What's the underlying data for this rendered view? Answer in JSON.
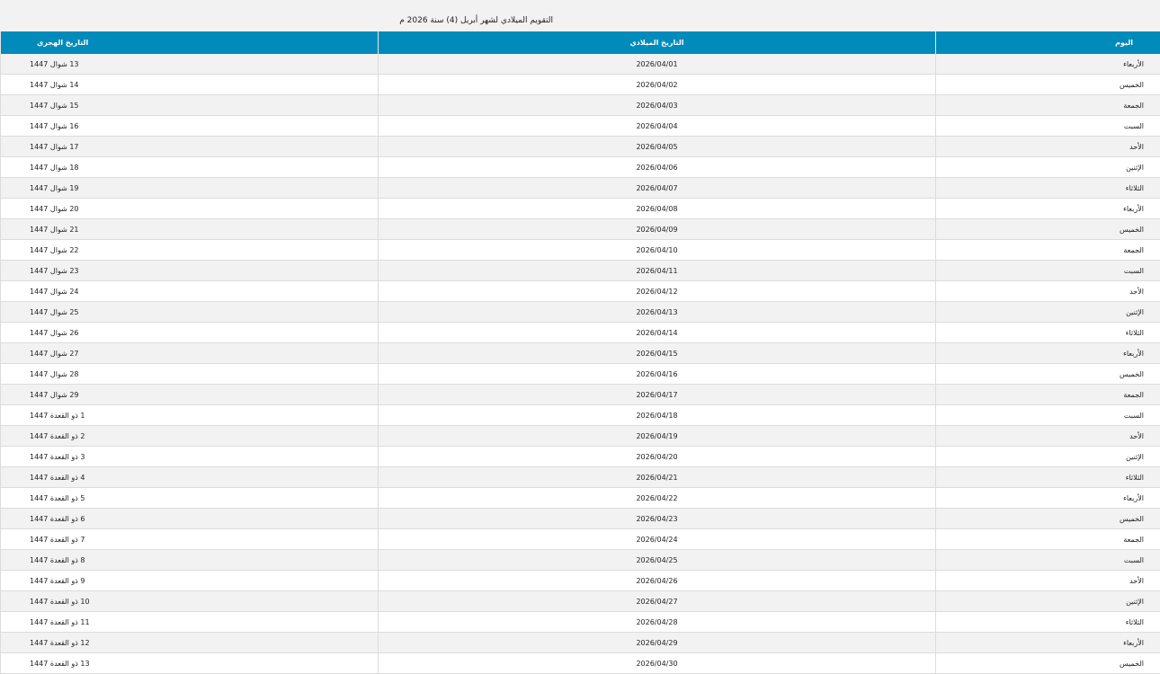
{
  "title": "التقويم الميلادي لشهر أبريل (4) سنة 2026 م",
  "accent": "#008bbb",
  "headers": {
    "day": "اليوم",
    "gregorian": "التاريخ الميلادي",
    "hijri": "التاريخ الهجري"
  },
  "rows": [
    {
      "day": "الأربعاء",
      "gregorian": "2026/04/01",
      "hijri": "13 شوال 1447"
    },
    {
      "day": "الخميس",
      "gregorian": "2026/04/02",
      "hijri": "14 شوال 1447"
    },
    {
      "day": "الجمعة",
      "gregorian": "2026/04/03",
      "hijri": "15 شوال 1447"
    },
    {
      "day": "السبت",
      "gregorian": "2026/04/04",
      "hijri": "16 شوال 1447"
    },
    {
      "day": "الأحد",
      "gregorian": "2026/04/05",
      "hijri": "17 شوال 1447"
    },
    {
      "day": "الإثنين",
      "gregorian": "2026/04/06",
      "hijri": "18 شوال 1447"
    },
    {
      "day": "الثلاثاء",
      "gregorian": "2026/04/07",
      "hijri": "19 شوال 1447"
    },
    {
      "day": "الأربعاء",
      "gregorian": "2026/04/08",
      "hijri": "20 شوال 1447"
    },
    {
      "day": "الخميس",
      "gregorian": "2026/04/09",
      "hijri": "21 شوال 1447"
    },
    {
      "day": "الجمعة",
      "gregorian": "2026/04/10",
      "hijri": "22 شوال 1447"
    },
    {
      "day": "السبت",
      "gregorian": "2026/04/11",
      "hijri": "23 شوال 1447"
    },
    {
      "day": "الأحد",
      "gregorian": "2026/04/12",
      "hijri": "24 شوال 1447"
    },
    {
      "day": "الإثنين",
      "gregorian": "2026/04/13",
      "hijri": "25 شوال 1447"
    },
    {
      "day": "الثلاثاء",
      "gregorian": "2026/04/14",
      "hijri": "26 شوال 1447"
    },
    {
      "day": "الأربعاء",
      "gregorian": "2026/04/15",
      "hijri": "27 شوال 1447"
    },
    {
      "day": "الخميس",
      "gregorian": "2026/04/16",
      "hijri": "28 شوال 1447"
    },
    {
      "day": "الجمعة",
      "gregorian": "2026/04/17",
      "hijri": "29 شوال 1447"
    },
    {
      "day": "السبت",
      "gregorian": "2026/04/18",
      "hijri": "1 ذو القعدة 1447"
    },
    {
      "day": "الأحد",
      "gregorian": "2026/04/19",
      "hijri": "2 ذو القعدة 1447"
    },
    {
      "day": "الإثنين",
      "gregorian": "2026/04/20",
      "hijri": "3 ذو القعدة 1447"
    },
    {
      "day": "الثلاثاء",
      "gregorian": "2026/04/21",
      "hijri": "4 ذو القعدة 1447"
    },
    {
      "day": "الأربعاء",
      "gregorian": "2026/04/22",
      "hijri": "5 ذو القعدة 1447"
    },
    {
      "day": "الخميس",
      "gregorian": "2026/04/23",
      "hijri": "6 ذو القعدة 1447"
    },
    {
      "day": "الجمعة",
      "gregorian": "2026/04/24",
      "hijri": "7 ذو القعدة 1447"
    },
    {
      "day": "السبت",
      "gregorian": "2026/04/25",
      "hijri": "8 ذو القعدة 1447"
    },
    {
      "day": "الأحد",
      "gregorian": "2026/04/26",
      "hijri": "9 ذو القعدة 1447"
    },
    {
      "day": "الإثنين",
      "gregorian": "2026/04/27",
      "hijri": "10 ذو القعدة 1447"
    },
    {
      "day": "الثلاثاء",
      "gregorian": "2026/04/28",
      "hijri": "11 ذو القعدة 1447"
    },
    {
      "day": "الأربعاء",
      "gregorian": "2026/04/29",
      "hijri": "12 ذو القعدة 1447"
    },
    {
      "day": "الخميس",
      "gregorian": "2026/04/30",
      "hijri": "13 ذو القعدة 1447"
    }
  ]
}
